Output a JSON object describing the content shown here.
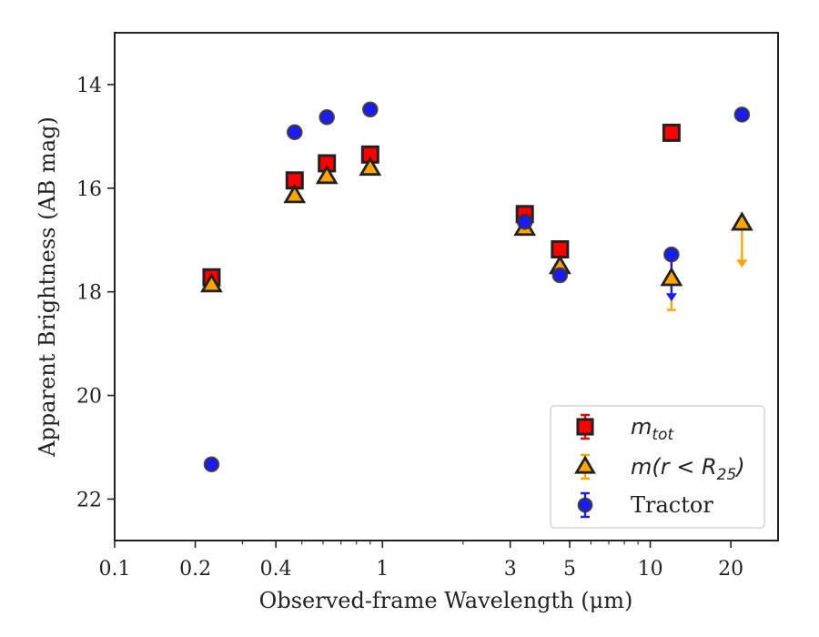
{
  "chart_data": {
    "type": "scatter",
    "xlabel": "Observed-frame Wavelength (μm)",
    "ylabel": "Apparent Brightness (AB mag)",
    "xscale": "log",
    "xlim": [
      0.1,
      30
    ],
    "ylim": [
      22.8,
      13.0
    ],
    "y_inverted": true,
    "x_ticks": [
      0.1,
      0.2,
      0.4,
      1,
      3,
      5,
      10,
      20
    ],
    "x_tick_labels": [
      "0.1",
      "0.2",
      "0.4",
      "1",
      "3",
      "5",
      "10",
      "20"
    ],
    "y_ticks": [
      14,
      16,
      18,
      20,
      22
    ],
    "y_tick_labels": [
      "14",
      "16",
      "18",
      "20",
      "22"
    ],
    "grid": false,
    "legend": "bottom-right",
    "series": [
      {
        "name": "m_tot",
        "legend_main": "m",
        "legend_sub": "tot",
        "marker": "square",
        "color": "#ff0000",
        "edge": "#222222",
        "error_color": "#ff0000",
        "points": [
          {
            "x": 0.23,
            "y": 17.72
          },
          {
            "x": 0.47,
            "y": 15.85
          },
          {
            "x": 0.62,
            "y": 15.52
          },
          {
            "x": 0.9,
            "y": 15.35
          },
          {
            "x": 3.4,
            "y": 16.5
          },
          {
            "x": 4.6,
            "y": 17.18
          },
          {
            "x": 12.0,
            "y": 14.93
          }
        ]
      },
      {
        "name": "m(r < R25)",
        "legend_main": "m(r < R",
        "legend_sub": "25",
        "legend_tail": ")",
        "marker": "triangle",
        "color": "#ffa500",
        "edge": "#222222",
        "error_color": "#ffa500",
        "points": [
          {
            "x": 0.23,
            "y": 17.87
          },
          {
            "x": 0.47,
            "y": 16.15
          },
          {
            "x": 0.62,
            "y": 15.78
          },
          {
            "x": 0.9,
            "y": 15.62
          },
          {
            "x": 3.4,
            "y": 16.78
          },
          {
            "x": 4.6,
            "y": 17.52
          },
          {
            "x": 12.0,
            "y": 17.75,
            "err_upper": 17.25,
            "err_lower": 18.35
          },
          {
            "x": 22.0,
            "y": 16.68,
            "upper_limit_to": 17.5
          }
        ]
      },
      {
        "name": "Tractor",
        "marker": "circle",
        "color": "#1a1aff",
        "edge": "#333333",
        "error_color": "#1a1aff",
        "points": [
          {
            "x": 0.23,
            "y": 21.33
          },
          {
            "x": 0.47,
            "y": 14.92
          },
          {
            "x": 0.62,
            "y": 14.63
          },
          {
            "x": 0.9,
            "y": 14.48
          },
          {
            "x": 3.4,
            "y": 16.65
          },
          {
            "x": 4.6,
            "y": 17.68
          },
          {
            "x": 12.0,
            "y": 17.28,
            "upper_limit_to": 18.15
          },
          {
            "x": 22.0,
            "y": 14.58
          }
        ]
      }
    ]
  }
}
